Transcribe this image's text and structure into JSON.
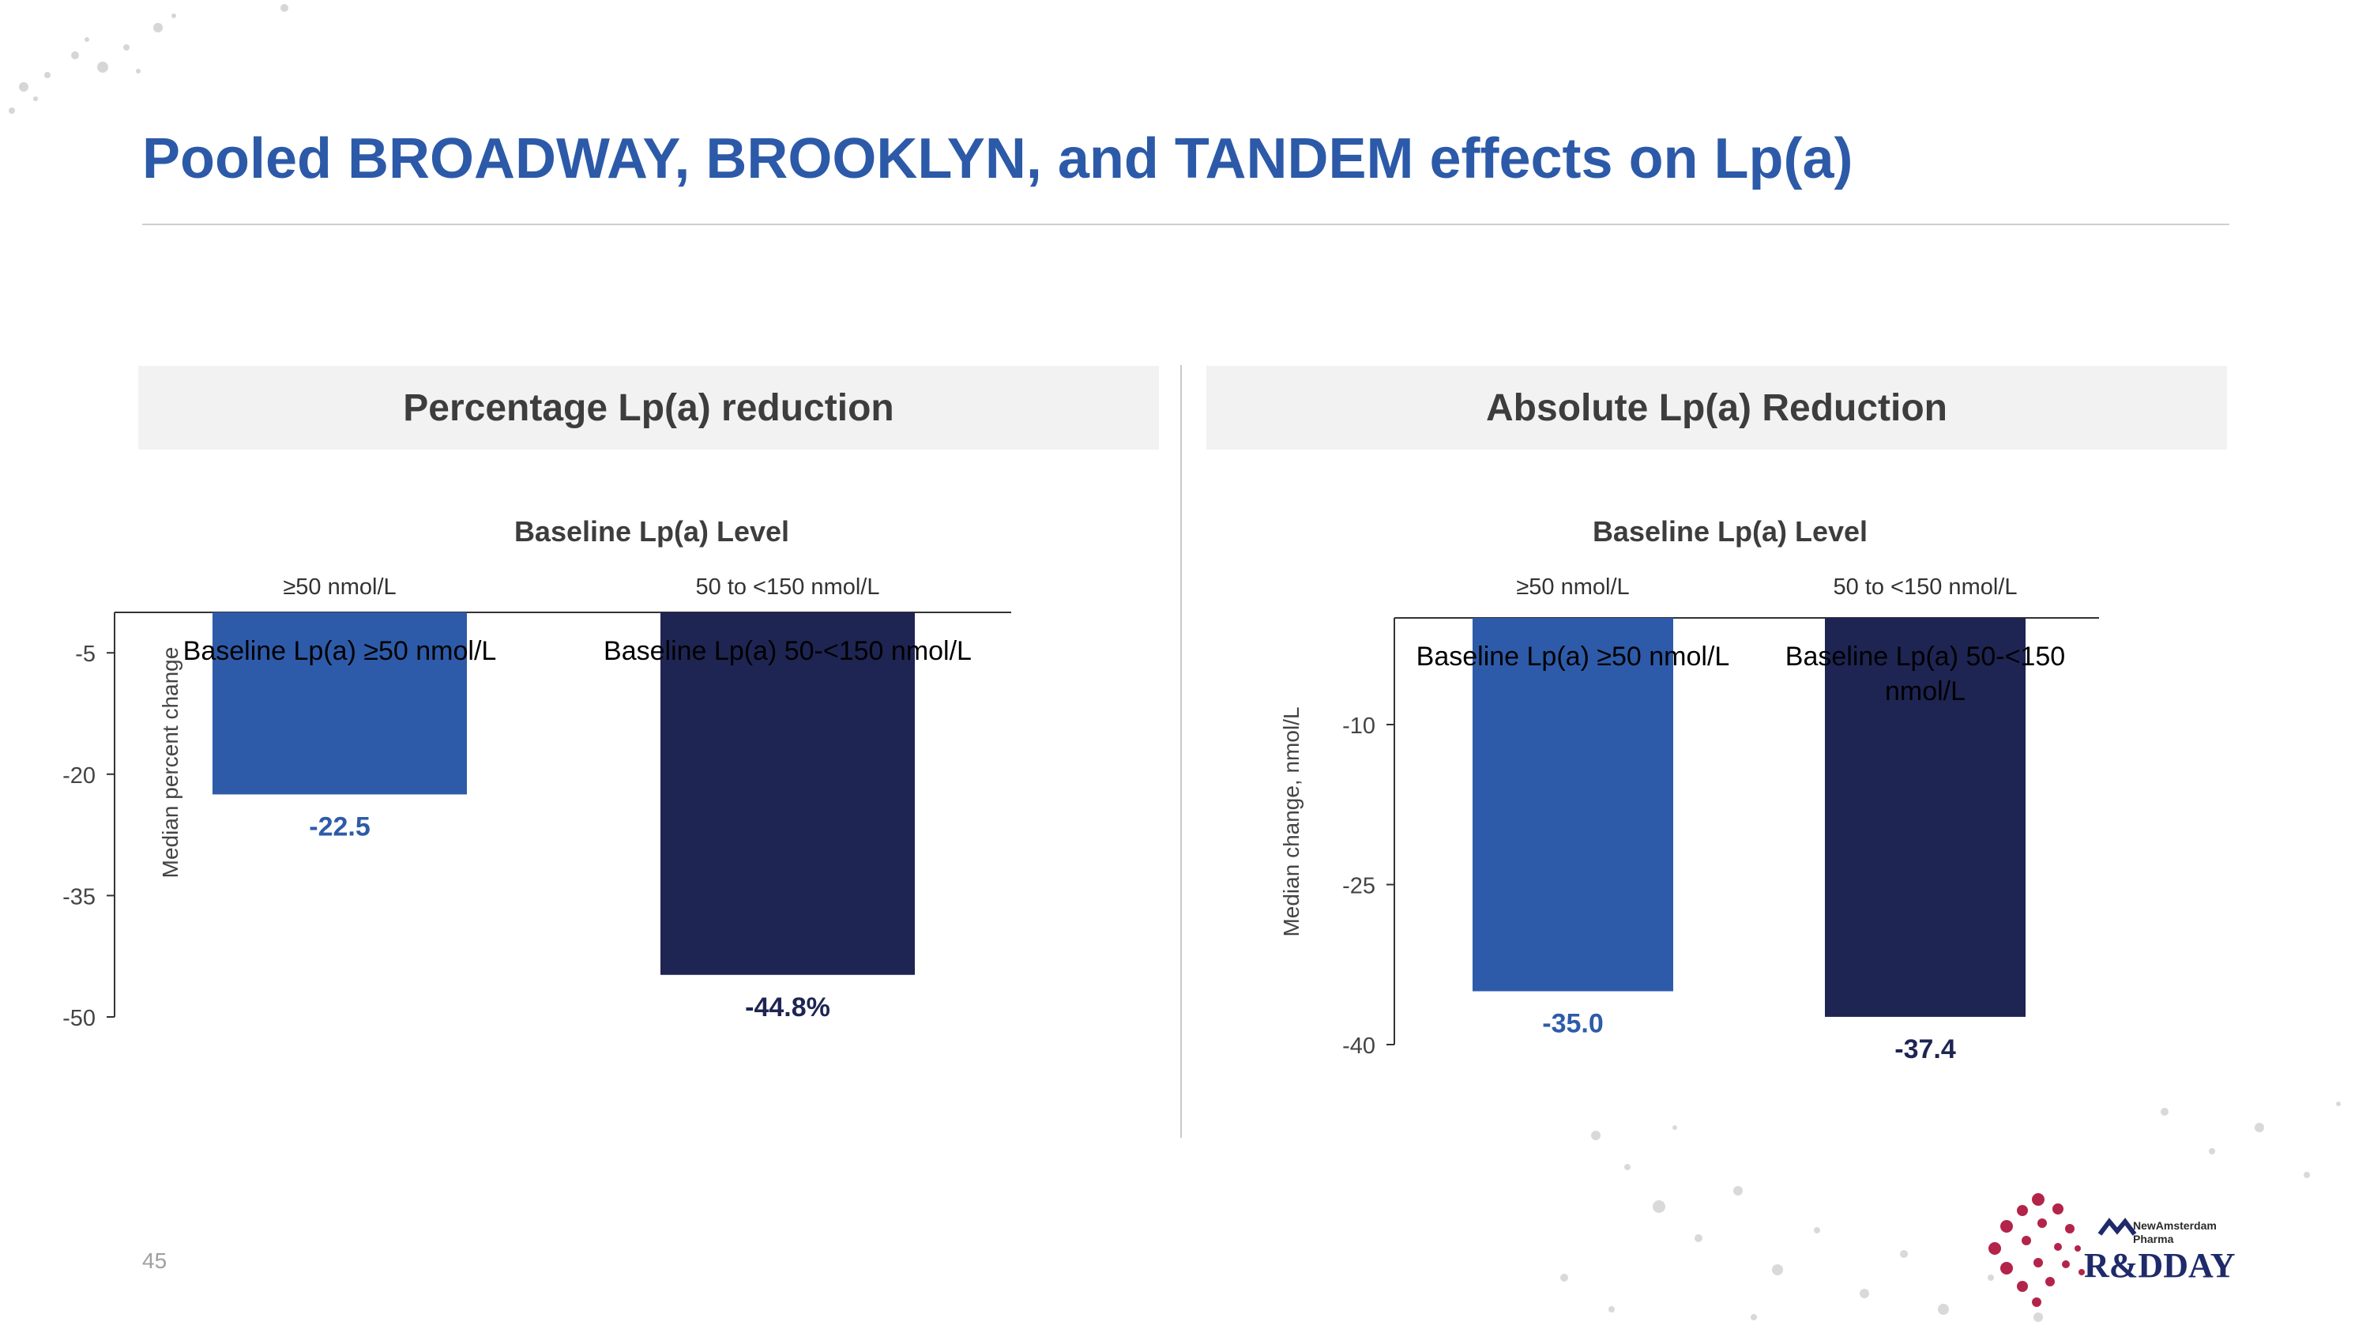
{
  "slide": {
    "title": "Pooled BROADWAY, BROOKLYN, and TANDEM effects on Lp(a)",
    "page_number": "45",
    "logo": {
      "brand_line1": "NewAmsterdam",
      "brand_line2": "Pharma",
      "event": "R&DDAY"
    }
  },
  "panels": {
    "left": {
      "title": "Percentage Lp(a) reduction"
    },
    "right": {
      "title": "Absolute Lp(a) Reduction"
    }
  },
  "colors": {
    "title": "#2C5AA8",
    "series_ge50": "#2E5BA9",
    "series_50_150": "#1E2553",
    "axis": "#333333",
    "logo_accent": "#B3244A"
  },
  "chart_data": [
    {
      "type": "bar",
      "title": "Baseline Lp(a) Level",
      "categories": [
        "≥50 nmol/L",
        "50 to <150 nmol/L"
      ],
      "bar_labels": [
        "Baseline Lp(a) ≥50 nmol/L",
        "Baseline Lp(a) 50-<150 nmol/L"
      ],
      "values": [
        -22.5,
        -44.8
      ],
      "data_labels": [
        "-22.5",
        "-44.8%"
      ],
      "ylabel": "Median percent change",
      "yticks": [
        -5,
        -20,
        -35,
        -50
      ],
      "ytick_labels": [
        "-5",
        "-20",
        "-35",
        "-50"
      ],
      "ylim": [
        -50,
        0
      ],
      "x_axis_position": "top",
      "grid": false,
      "legend": "none"
    },
    {
      "type": "bar",
      "title": "Baseline Lp(a) Level",
      "categories": [
        "≥50 nmol/L",
        "50 to <150 nmol/L"
      ],
      "bar_labels": [
        "Baseline Lp(a) ≥50 nmol/L",
        "Baseline Lp(a) 50-<150 nmol/L"
      ],
      "values": [
        -35.0,
        -37.4
      ],
      "data_labels": [
        "-35.0",
        "-37.4"
      ],
      "ylabel": "Median change, nmol/L",
      "yticks": [
        -10,
        -25,
        -40
      ],
      "ytick_labels": [
        "-10",
        "-25",
        "-40"
      ],
      "ylim": [
        -40,
        0
      ],
      "x_axis_position": "top",
      "grid": false,
      "legend": "none"
    }
  ]
}
